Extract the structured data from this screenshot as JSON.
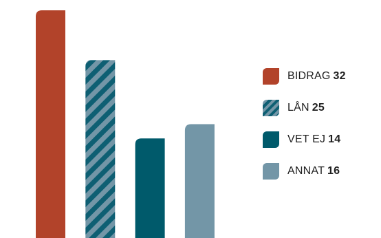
{
  "chart_data": {
    "type": "bar",
    "categories": [
      "BIDRAG",
      "LÅN",
      "VET EJ",
      "ANNAT"
    ],
    "values": [
      32,
      25,
      14,
      16
    ],
    "colors": [
      "#b2432a",
      "#0e5f73",
      "#005a6b",
      "#7396a7"
    ],
    "patterns": [
      "solid",
      "diagonal-stripes",
      "solid",
      "solid"
    ],
    "title": "",
    "xlabel": "",
    "ylabel": "",
    "ylim": [
      0,
      32
    ],
    "grid": false,
    "legend_position": "right",
    "legend": [
      {
        "name": "BIDRAG",
        "value": "32"
      },
      {
        "name": "LÅN",
        "value": "25"
      },
      {
        "name": "VET EJ",
        "value": "14"
      },
      {
        "name": "ANNAT",
        "value": "16"
      }
    ]
  }
}
